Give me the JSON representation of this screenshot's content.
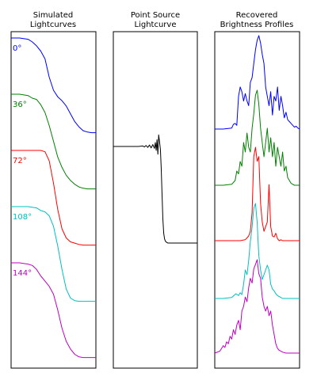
{
  "panels": [
    {
      "title_lines": [
        "Simulated",
        "Lightcurves"
      ],
      "chart_data": {
        "type": "line",
        "title": "Simulated Lightcurves",
        "grid": false,
        "series": [
          {
            "label": "0°",
            "color": "#0000ff",
            "x": [
              0,
              10,
              20,
              25,
              30,
              35,
              40,
              45,
              50,
              55,
              60,
              65,
              70,
              75,
              80,
              85,
              90,
              95,
              100
            ],
            "y": [
              1.0,
              1.0,
              0.99,
              0.97,
              0.94,
              0.9,
              0.84,
              0.7,
              0.6,
              0.55,
              0.52,
              0.48,
              0.42,
              0.36,
              0.32,
              0.29,
              0.28,
              0.275,
              0.275
            ]
          },
          {
            "label": "36°",
            "color": "#008000",
            "x": [
              0,
              10,
              20,
              25,
              30,
              35,
              40,
              45,
              50,
              55,
              60,
              65,
              70,
              75,
              80,
              85,
              90,
              95,
              100
            ],
            "y": [
              1.0,
              1.0,
              0.99,
              0.97,
              0.96,
              0.92,
              0.86,
              0.76,
              0.64,
              0.52,
              0.44,
              0.38,
              0.34,
              0.31,
              0.29,
              0.28,
              0.275,
              0.275,
              0.275
            ]
          },
          {
            "label": "72°",
            "color": "#ff0000",
            "x": [
              0,
              10,
              20,
              30,
              35,
              40,
              45,
              50,
              55,
              60,
              65,
              70,
              75,
              80,
              85,
              90,
              95,
              100
            ],
            "y": [
              1.0,
              1.0,
              1.0,
              1.0,
              1.0,
              0.99,
              0.92,
              0.75,
              0.55,
              0.4,
              0.33,
              0.3,
              0.29,
              0.28,
              0.275,
              0.275,
              0.275,
              0.275
            ]
          },
          {
            "label": "108°",
            "color": "#00bfbf",
            "x": [
              0,
              10,
              20,
              30,
              35,
              40,
              45,
              50,
              55,
              60,
              65,
              70,
              75,
              80,
              85,
              90,
              95,
              100
            ],
            "y": [
              1.0,
              1.0,
              1.0,
              0.99,
              0.97,
              0.96,
              0.93,
              0.85,
              0.7,
              0.52,
              0.37,
              0.3,
              0.28,
              0.275,
              0.275,
              0.275,
              0.275,
              0.275
            ]
          },
          {
            "label": "144°",
            "color": "#bf00bf",
            "x": [
              0,
              10,
              20,
              25,
              30,
              35,
              40,
              45,
              50,
              55,
              60,
              65,
              70,
              75,
              80,
              85,
              90,
              95,
              100
            ],
            "y": [
              1.0,
              1.0,
              0.99,
              0.98,
              0.95,
              0.9,
              0.86,
              0.82,
              0.76,
              0.64,
              0.5,
              0.4,
              0.34,
              0.3,
              0.28,
              0.275,
              0.275,
              0.275,
              0.275
            ]
          }
        ]
      }
    },
    {
      "title_lines": [
        "Point Source",
        "Lightcurve"
      ],
      "chart_data": {
        "type": "line",
        "title": "Point Source Lightcurve",
        "grid": false,
        "series": [
          {
            "color": "#000000",
            "x": [
              0,
              10,
              20,
              30,
              35,
              37,
              39,
              41,
              43,
              45,
              47,
              49,
              50,
              51,
              52,
              53,
              54,
              55,
              56,
              57,
              58,
              59,
              60,
              61,
              62,
              63,
              64,
              65,
              70,
              80,
              90,
              100
            ],
            "y": [
              1.0,
              1.0,
              1.0,
              1.0,
              1.005,
              0.995,
              1.01,
              0.99,
              1.015,
              0.985,
              1.02,
              0.98,
              1.04,
              0.96,
              1.07,
              0.92,
              1.12,
              1.05,
              0.97,
              0.78,
              0.5,
              0.25,
              0.1,
              0.04,
              0.02,
              0.01,
              0.005,
              0.0,
              0.0,
              0.0,
              0.0,
              0.0
            ]
          }
        ]
      }
    },
    {
      "title_lines": [
        "Recovered",
        "Brightness Profiles"
      ],
      "chart_data": {
        "type": "line",
        "title": "Recovered Brightness Profiles",
        "grid": false,
        "series": [
          {
            "color": "#0000ff",
            "x": [
              0,
              10,
              20,
              22,
              24,
              26,
              28,
              30,
              32,
              34,
              36,
              38,
              40,
              42,
              44,
              46,
              48,
              50,
              52,
              54,
              56,
              58,
              60,
              62,
              64,
              66,
              68,
              70,
              72,
              74,
              76,
              78,
              80,
              82,
              84,
              86,
              88,
              90,
              92,
              94,
              96,
              98,
              100
            ],
            "y": [
              0.0,
              0.0,
              0.01,
              0.05,
              0.06,
              0.04,
              0.35,
              0.45,
              0.4,
              0.3,
              0.38,
              0.3,
              0.25,
              0.5,
              0.55,
              0.7,
              0.85,
              0.95,
              1.0,
              0.92,
              0.8,
              0.7,
              0.45,
              0.35,
              0.25,
              0.4,
              0.15,
              0.35,
              0.3,
              0.45,
              0.2,
              0.35,
              0.25,
              0.12,
              0.18,
              0.1,
              0.08,
              0.06,
              0.04,
              0.02,
              0.03,
              0.01,
              0.0
            ]
          },
          {
            "color": "#008000",
            "x": [
              0,
              10,
              20,
              24,
              26,
              28,
              30,
              32,
              34,
              36,
              38,
              40,
              42,
              44,
              46,
              48,
              50,
              52,
              54,
              56,
              58,
              60,
              62,
              64,
              66,
              68,
              70,
              72,
              74,
              76,
              78,
              80,
              82,
              84,
              86,
              88,
              90,
              92,
              94,
              96,
              98,
              100
            ],
            "y": [
              0.0,
              0.0,
              0.01,
              0.05,
              0.15,
              0.12,
              0.25,
              0.2,
              0.45,
              0.35,
              0.55,
              0.4,
              0.35,
              0.6,
              0.75,
              0.95,
              1.0,
              0.85,
              0.6,
              0.45,
              0.3,
              0.45,
              0.6,
              0.35,
              0.5,
              0.3,
              0.45,
              0.2,
              0.4,
              0.3,
              0.2,
              0.35,
              0.15,
              0.2,
              0.08,
              0.05,
              0.02,
              0.01,
              0.0,
              0.0,
              0.0,
              0.0
            ]
          },
          {
            "color": "#ff0000",
            "x": [
              0,
              10,
              20,
              30,
              36,
              38,
              40,
              42,
              44,
              46,
              48,
              50,
              52,
              54,
              56,
              58,
              60,
              62,
              64,
              66,
              68,
              70,
              72,
              74,
              76,
              78,
              80,
              82,
              84,
              86,
              88,
              90,
              92,
              94,
              96,
              98,
              100
            ],
            "y": [
              0.0,
              0.0,
              0.0,
              0.0,
              0.01,
              0.03,
              0.05,
              0.1,
              0.3,
              0.9,
              1.0,
              0.85,
              0.9,
              0.4,
              0.2,
              0.1,
              0.15,
              0.2,
              0.6,
              0.15,
              0.05,
              0.04,
              0.08,
              0.02,
              0.0,
              0.01,
              0.0,
              0.0,
              0.0,
              0.0,
              0.0,
              0.0,
              0.0,
              0.0,
              0.0,
              0.0,
              0.0
            ]
          },
          {
            "color": "#00bfbf",
            "x": [
              0,
              10,
              20,
              25,
              28,
              30,
              32,
              34,
              36,
              38,
              40,
              42,
              44,
              46,
              48,
              50,
              52,
              54,
              56,
              58,
              60,
              62,
              64,
              66,
              68,
              70,
              72,
              74,
              76,
              78,
              80,
              82,
              84,
              86,
              88,
              90,
              92,
              94,
              96,
              98,
              100
            ],
            "y": [
              0.0,
              0.0,
              0.01,
              0.05,
              0.03,
              0.06,
              0.04,
              0.15,
              0.3,
              0.25,
              0.4,
              0.6,
              0.75,
              0.95,
              1.0,
              0.8,
              0.45,
              0.3,
              0.2,
              0.25,
              0.3,
              0.35,
              0.3,
              0.15,
              0.1,
              0.08,
              0.05,
              0.03,
              0.02,
              0.01,
              0.0,
              0.0,
              0.0,
              0.0,
              0.0,
              0.0,
              0.0,
              0.0,
              0.0,
              0.0,
              0.0
            ]
          },
          {
            "color": "#bf00bf",
            "x": [
              0,
              6,
              8,
              10,
              12,
              14,
              16,
              18,
              20,
              22,
              24,
              26,
              28,
              30,
              32,
              34,
              36,
              38,
              40,
              42,
              44,
              46,
              48,
              50,
              52,
              54,
              56,
              58,
              60,
              62,
              64,
              66,
              68,
              70,
              72,
              74,
              76,
              78,
              80,
              84,
              88,
              92,
              96,
              100
            ],
            "y": [
              0.0,
              0.02,
              0.05,
              0.08,
              0.06,
              0.12,
              0.1,
              0.18,
              0.15,
              0.25,
              0.2,
              0.3,
              0.35,
              0.25,
              0.45,
              0.5,
              0.6,
              0.55,
              0.7,
              0.8,
              0.75,
              0.9,
              0.95,
              1.0,
              0.85,
              0.8,
              0.6,
              0.5,
              0.45,
              0.5,
              0.4,
              0.45,
              0.3,
              0.2,
              0.1,
              0.05,
              0.03,
              0.02,
              0.01,
              0.0,
              0.0,
              0.0,
              0.0,
              0.0
            ]
          }
        ]
      }
    }
  ]
}
